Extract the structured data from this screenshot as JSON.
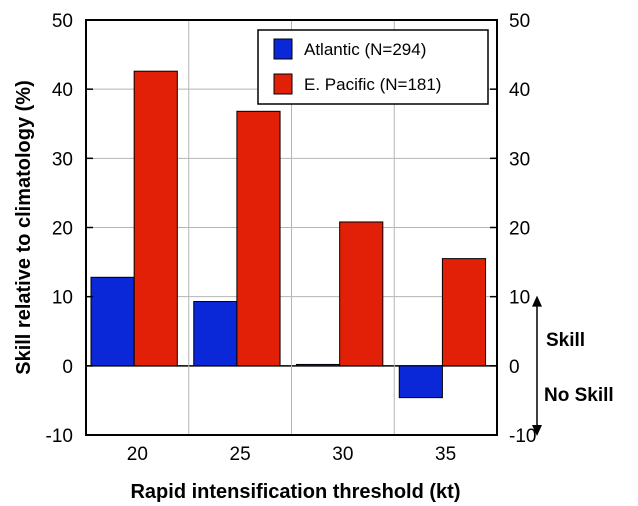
{
  "chart_data": {
    "type": "bar",
    "categories": [
      "20",
      "25",
      "30",
      "35"
    ],
    "series": [
      {
        "name": "Atlantic (N=294)",
        "values": [
          12.8,
          9.3,
          0.2,
          -4.6
        ],
        "color": "#0a28d8"
      },
      {
        "name": "E. Pacific (N=181)",
        "values": [
          42.6,
          36.8,
          20.8,
          15.5
        ],
        "color": "#e22008"
      }
    ],
    "title": "",
    "xlabel": "Rapid intensification threshold (kt)",
    "ylabel": "Skill relative to climatology (%)",
    "ylim": [
      -10,
      50
    ],
    "yticks": [
      -10,
      0,
      10,
      20,
      30,
      40,
      50
    ],
    "grid": true,
    "legend_position": "top-right",
    "annotations": {
      "skill": "Skill",
      "no_skill": "No Skill"
    }
  }
}
